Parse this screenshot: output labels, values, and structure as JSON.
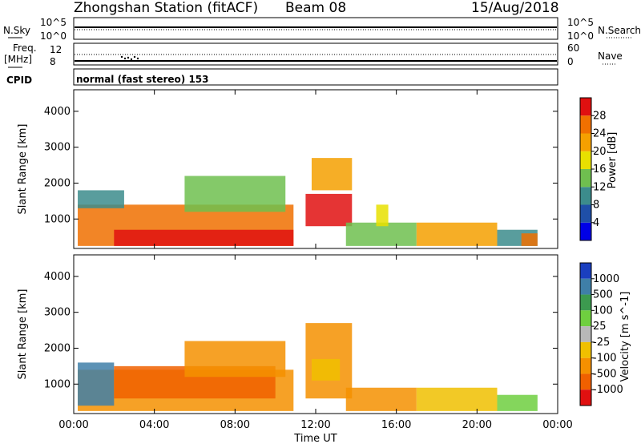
{
  "header": {
    "station": "Zhongshan Station (fitACF)",
    "beam": "Beam 08",
    "date": "15/Aug/2018"
  },
  "top_panels": {
    "nsky_label": "N.Sky",
    "nsky_ticks": [
      "10^5",
      "10^0"
    ],
    "nsearch_label": "N.Search",
    "nsearch_ticks": [
      "10^5",
      "10^0"
    ],
    "freq_label_1": "Freq.",
    "freq_label_2": "[MHz]",
    "freq_ticks": [
      "12",
      "8"
    ],
    "nave_label": "Nave",
    "nave_ticks": [
      "60",
      "0"
    ],
    "cpid_label": "CPID",
    "cpid_text": "normal (fast stereo) 153"
  },
  "chart_data": [
    {
      "type": "heatmap",
      "name": "power",
      "ylabel": "Slant Range [km]",
      "ylim": [
        180,
        4600
      ],
      "yticks": [
        "1000",
        "2000",
        "3000",
        "4000"
      ],
      "colorbar_label": "Power [dB]",
      "colorbar_ticks": [
        "4",
        "8",
        "12",
        "16",
        "20",
        "24",
        "28"
      ],
      "colors": [
        "#0000e6",
        "#1f4fa8",
        "#3c8c8c",
        "#6fbf4f",
        "#e8e000",
        "#f5a000",
        "#f07000",
        "#e01010"
      ],
      "patches": [
        {
          "t0": 0.2,
          "t1": 10.9,
          "r0": 250,
          "r1": 1400,
          "level": 6
        },
        {
          "t0": 0.2,
          "t1": 2.5,
          "r0": 1300,
          "r1": 1800,
          "level": 2
        },
        {
          "t0": 5.5,
          "t1": 10.5,
          "r0": 1200,
          "r1": 2200,
          "level": 3
        },
        {
          "t0": 2.0,
          "t1": 10.9,
          "r0": 250,
          "r1": 700,
          "level": 7
        },
        {
          "t0": 11.5,
          "t1": 13.8,
          "r0": 800,
          "r1": 1700,
          "level": 7
        },
        {
          "t0": 11.8,
          "t1": 13.8,
          "r0": 1800,
          "r1": 2700,
          "level": 5
        },
        {
          "t0": 13.5,
          "t1": 17.0,
          "r0": 250,
          "r1": 900,
          "level": 3
        },
        {
          "t0": 15.0,
          "t1": 15.6,
          "r0": 800,
          "r1": 1400,
          "level": 4
        },
        {
          "t0": 17.0,
          "t1": 21.0,
          "r0": 250,
          "r1": 900,
          "level": 5
        },
        {
          "t0": 21.0,
          "t1": 23.0,
          "r0": 250,
          "r1": 700,
          "level": 2
        },
        {
          "t0": 22.2,
          "t1": 23.0,
          "r0": 250,
          "r1": 600,
          "level": 6
        }
      ]
    },
    {
      "type": "heatmap",
      "name": "velocity",
      "ylabel": "Slant Range [km]",
      "ylim": [
        180,
        4600
      ],
      "yticks": [
        "1000",
        "2000",
        "3000",
        "4000"
      ],
      "xlabel": "Time UT",
      "xticks": [
        "00:00",
        "04:00",
        "08:00",
        "12:00",
        "16:00",
        "20:00",
        "00:00"
      ],
      "colorbar_label": "Velocity [m s^-1]",
      "colorbar_ticks": [
        "1000",
        "500",
        "100",
        "25",
        "-25",
        "-100",
        "-500",
        "-1000"
      ],
      "colors": [
        "#1a3fbf",
        "#3f7fa8",
        "#3c9a4f",
        "#6fcf3f",
        "#b8b8b8",
        "#f0c000",
        "#f59000",
        "#f06000",
        "#e01010"
      ],
      "patches": [
        {
          "t0": 0.2,
          "t1": 10.9,
          "r0": 250,
          "r1": 1400,
          "level": 6
        },
        {
          "t0": 0.2,
          "t1": 2.0,
          "r0": 400,
          "r1": 1600,
          "level": 1
        },
        {
          "t0": 2.0,
          "t1": 10.0,
          "r0": 600,
          "r1": 1500,
          "level": 7
        },
        {
          "t0": 5.5,
          "t1": 10.5,
          "r0": 1200,
          "r1": 2200,
          "level": 6
        },
        {
          "t0": 11.5,
          "t1": 13.8,
          "r0": 600,
          "r1": 2700,
          "level": 6
        },
        {
          "t0": 11.8,
          "t1": 13.2,
          "r0": 1100,
          "r1": 1700,
          "level": 5
        },
        {
          "t0": 13.5,
          "t1": 17.0,
          "r0": 250,
          "r1": 900,
          "level": 6
        },
        {
          "t0": 17.0,
          "t1": 21.0,
          "r0": 250,
          "r1": 900,
          "level": 5
        },
        {
          "t0": 21.0,
          "t1": 23.0,
          "r0": 250,
          "r1": 700,
          "level": 3
        }
      ]
    }
  ]
}
